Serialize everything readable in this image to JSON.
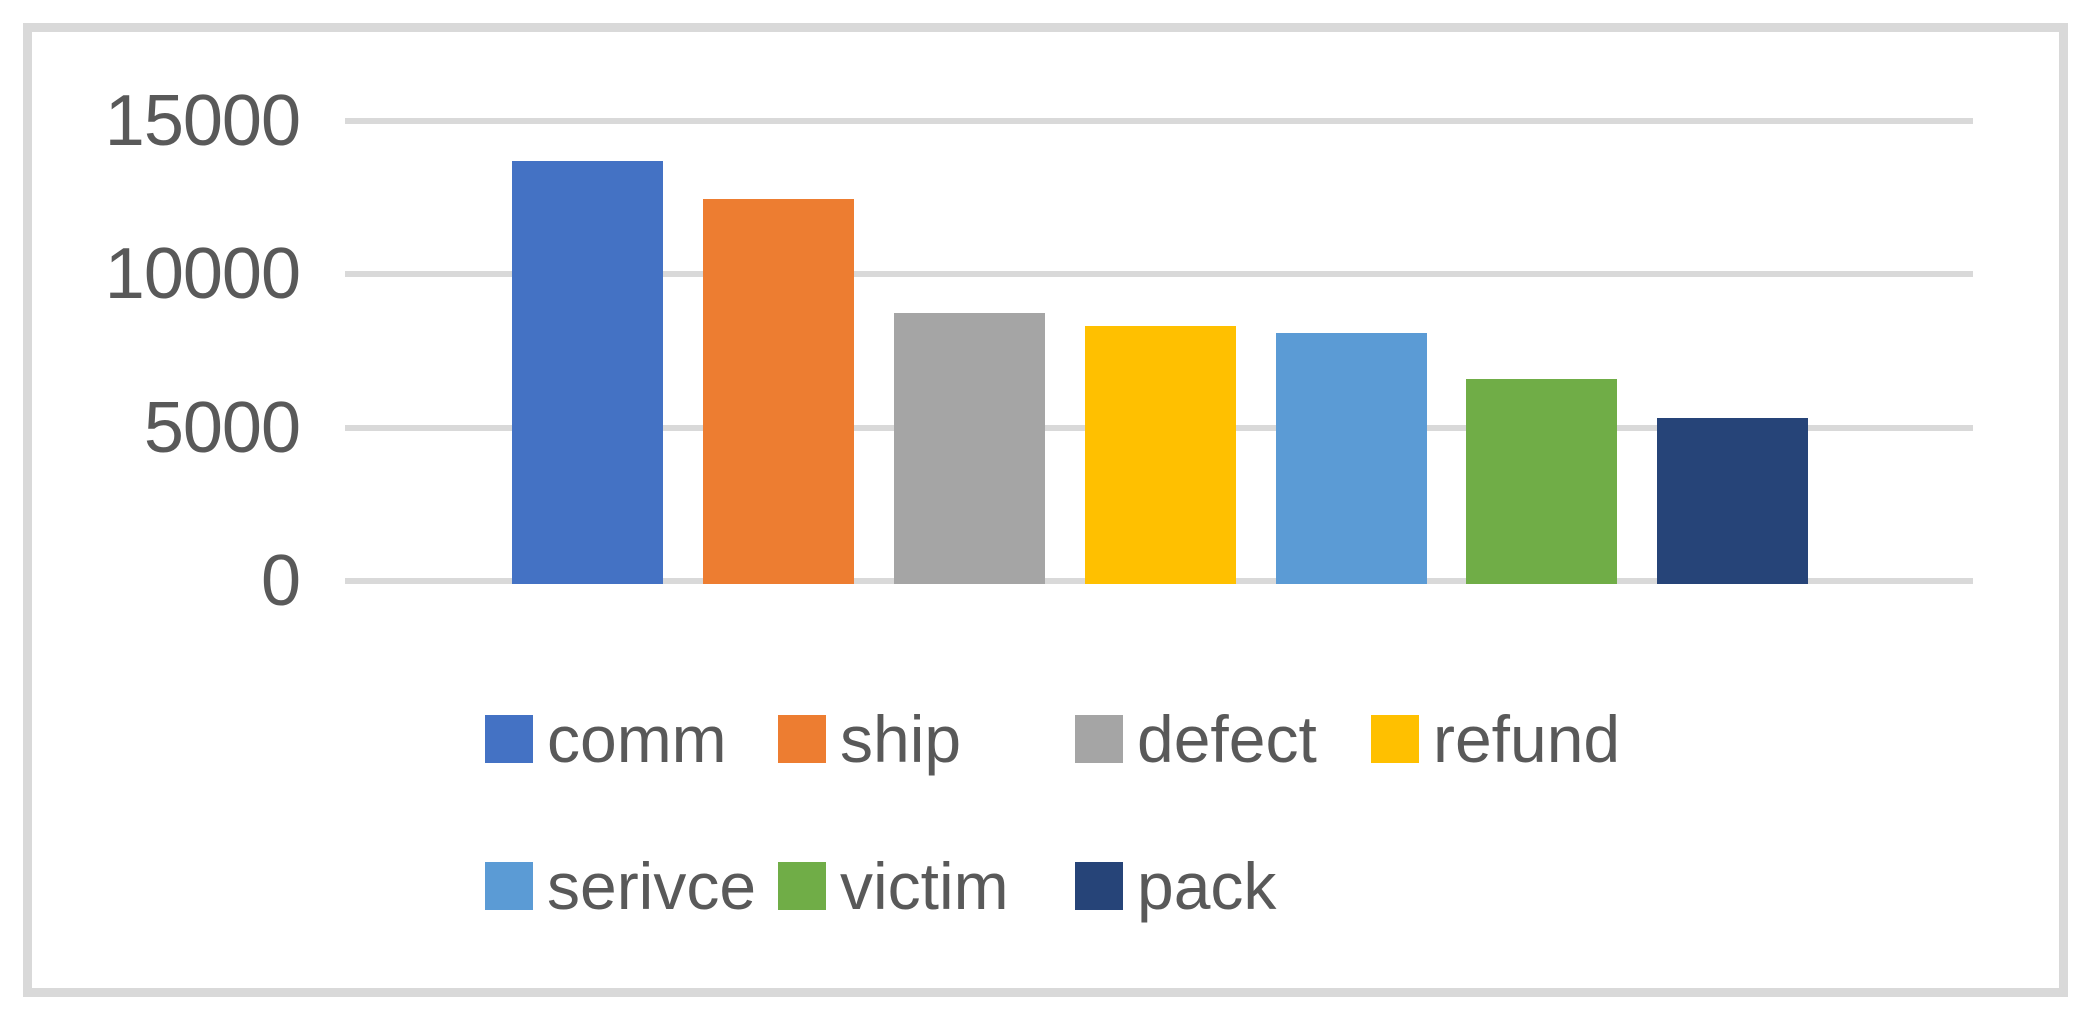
{
  "chart_data": {
    "type": "bar",
    "title": "",
    "xlabel": "",
    "ylabel": "",
    "categories": [
      "comm",
      "ship",
      "defect",
      "refund",
      "serivce",
      "victim",
      "pack"
    ],
    "values": [
      13700,
      12450,
      8750,
      8300,
      8100,
      6600,
      5300
    ],
    "colors": [
      "#4472C4",
      "#ED7D31",
      "#A5A5A5",
      "#FFC000",
      "#5B9BD5",
      "#70AD47",
      "#264478"
    ],
    "ylim": [
      0,
      15000
    ],
    "yticks": [
      15000,
      10000,
      5000,
      0
    ],
    "ytick_labels": [
      "15000",
      "10000",
      "5000",
      "0"
    ],
    "grid": true,
    "legend": {
      "position": "bottom",
      "rows": [
        [
          "comm",
          "ship",
          "defect",
          "refund"
        ],
        [
          "serivce",
          "victim",
          "pack"
        ]
      ]
    },
    "text_color": "#595959",
    "gridline_color": "#D9D9D9",
    "frame_border_color": "#D9D9D9",
    "background_color": "#FFFFFF"
  }
}
